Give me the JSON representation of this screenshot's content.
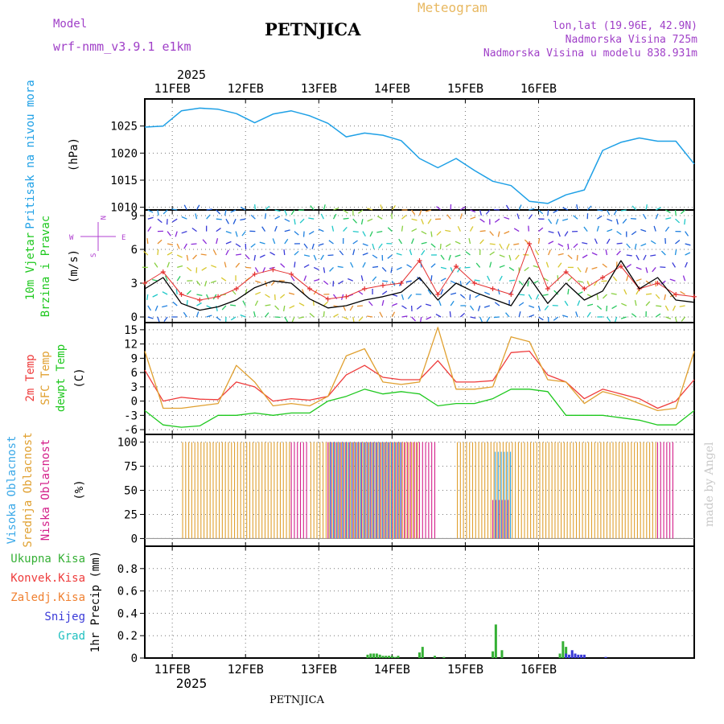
{
  "header": {
    "model_label": "Model",
    "model_name": "wrf-nmm_v3.9.1  e1km",
    "station": "PETNJICA",
    "product": "Meteogram",
    "coords": "lon,lat (19.96E, 42.9N)",
    "elevation": "Nadmorska Visina 725m",
    "model_elevation": "Nadmorska Visina u modelu 838.931m",
    "footer_station": "PETNJICA",
    "credit": "made by Angel"
  },
  "colors": {
    "pressure": "#1ea0e6",
    "wind_speed": "#000000",
    "gust": "#e43030",
    "t2m": "#ee3b3b",
    "sfc": "#e0a030",
    "dewpt": "#1ec81e",
    "high_cloud": "#3aa8e8",
    "mid_cloud": "#e0a030",
    "low_cloud": "#d4208a",
    "total_precip": "#35b035",
    "conv_precip": "#ee3b3b",
    "frozen_precip": "#f08030",
    "snow": "#3a3ad8",
    "hail": "#20c0c0",
    "compass": "#b040d0"
  },
  "x_axis": {
    "year": "2025",
    "days": [
      "11FEB",
      "12FEB",
      "13FEB",
      "14FEB",
      "15FEB",
      "16FEB"
    ]
  },
  "chart_data": [
    {
      "type": "line",
      "panel": "pressure",
      "title_lines": [
        "Pritisak na nivou mora"
      ],
      "unit": "(hPa)",
      "ylim": [
        1009.5,
        1030
      ],
      "yticks": [
        1010,
        1015,
        1020,
        1025
      ],
      "x_hours": [
        0,
        6,
        12,
        18,
        24,
        30,
        36,
        42,
        48,
        54,
        60,
        66,
        72,
        78,
        84,
        90,
        96,
        102,
        108,
        114,
        120,
        126,
        132,
        138,
        144,
        150,
        156,
        162,
        168,
        174,
        180
      ],
      "series": [
        {
          "values": [
            1024.8,
            1025.0,
            1027.8,
            1028.3,
            1028.1,
            1027.3,
            1025.6,
            1027.2,
            1027.8,
            1026.9,
            1025.5,
            1023.0,
            1023.7,
            1023.3,
            1022.3,
            1019.0,
            1017.3,
            1019.0,
            1016.8,
            1014.8,
            1014.0,
            1011.1,
            1010.7,
            1012.3,
            1013.2,
            1020.5,
            1022.0,
            1022.8,
            1022.2,
            1022.2,
            1018.0
          ]
        }
      ]
    },
    {
      "type": "line",
      "panel": "wind",
      "title_lines": [
        "10m Vjetar",
        "Brzina i Pravac"
      ],
      "unit": "(m/s)",
      "ylim": [
        -0.5,
        9.5
      ],
      "yticks": [
        0,
        3,
        6,
        9
      ],
      "compass": {
        "n": "N",
        "s": "S",
        "w": "W",
        "e": "E"
      },
      "x_hours": [
        0,
        6,
        12,
        18,
        24,
        30,
        36,
        42,
        48,
        54,
        60,
        66,
        72,
        78,
        84,
        90,
        96,
        102,
        108,
        114,
        120,
        126,
        132,
        138,
        144,
        150,
        156,
        162,
        168,
        174,
        180
      ],
      "series": [
        {
          "name": "wind speed",
          "values": [
            2.5,
            3.5,
            1.2,
            0.6,
            0.9,
            1.5,
            2.6,
            3.2,
            3.0,
            1.6,
            0.8,
            1.0,
            1.5,
            1.8,
            2.2,
            3.5,
            1.5,
            3.0,
            2.2,
            1.6,
            1.0,
            3.5,
            1.2,
            3.0,
            1.5,
            2.3,
            5.0,
            2.5,
            3.5,
            1.5,
            1.3
          ]
        },
        {
          "name": "gust",
          "values": [
            3.0,
            4.0,
            2.0,
            1.5,
            1.8,
            2.5,
            3.8,
            4.2,
            3.8,
            2.5,
            1.6,
            1.8,
            2.5,
            2.8,
            3.0,
            5.0,
            2.0,
            4.5,
            3.0,
            2.5,
            2.0,
            6.5,
            2.5,
            4.0,
            2.5,
            3.5,
            4.5,
            2.5,
            3.0,
            2.0,
            1.8
          ]
        }
      ]
    },
    {
      "type": "line",
      "panel": "temperature",
      "title_lines": [
        "2m Temp",
        "SFC Temp",
        "dewpt Temp"
      ],
      "unit": "(C)",
      "ylim": [
        -7,
        16.5
      ],
      "yticks": [
        -6,
        -3,
        0,
        3,
        6,
        9,
        12,
        15
      ],
      "x_hours": [
        0,
        6,
        12,
        18,
        24,
        30,
        36,
        42,
        48,
        54,
        60,
        66,
        72,
        78,
        84,
        90,
        96,
        102,
        108,
        114,
        120,
        126,
        132,
        138,
        144,
        150,
        156,
        162,
        168,
        174,
        180
      ],
      "series": [
        {
          "name": "2m Temp",
          "values": [
            6.5,
            0.0,
            0.8,
            0.4,
            0.3,
            4.0,
            3.0,
            0.0,
            0.5,
            0.2,
            1.0,
            5.5,
            7.5,
            5.0,
            4.5,
            4.5,
            8.5,
            4.0,
            4.0,
            4.3,
            10.2,
            10.5,
            5.5,
            4.0,
            0.5,
            2.5,
            1.5,
            0.5,
            -1.5,
            0.0,
            4.5
          ]
        },
        {
          "name": "SFC Temp",
          "values": [
            10.5,
            -1.5,
            -1.5,
            -1.0,
            -0.5,
            7.5,
            4.0,
            -1.0,
            -0.5,
            -1.0,
            1.0,
            9.5,
            11.0,
            4.0,
            3.5,
            4.0,
            15.5,
            2.5,
            2.5,
            3.0,
            13.5,
            12.5,
            4.5,
            4.0,
            -0.5,
            2.0,
            1.0,
            -0.5,
            -2.0,
            -1.5,
            10.5
          ]
        },
        {
          "name": "dewpt Temp",
          "values": [
            -2.0,
            -5.0,
            -5.5,
            -5.2,
            -3.0,
            -3.0,
            -2.5,
            -3.0,
            -2.5,
            -2.5,
            0.0,
            1.0,
            2.5,
            1.5,
            2.0,
            1.5,
            -1.0,
            -0.5,
            -0.5,
            0.5,
            2.5,
            2.5,
            2.0,
            -3.0,
            -3.0,
            -3.0,
            -3.5,
            -4.0,
            -5.0,
            -5.0,
            -2.0
          ]
        }
      ]
    },
    {
      "type": "bar",
      "panel": "cloud",
      "title_lines": [
        "Visoka Oblacnost",
        "Srednja Oblacnost",
        "Niska Oblacnost"
      ],
      "unit": "(%)",
      "ylim": [
        -8,
        108
      ],
      "yticks": [
        0,
        25,
        50,
        75,
        100
      ],
      "x_hours": [
        0,
        6,
        12,
        18,
        24,
        30,
        36,
        42,
        48,
        54,
        60,
        66,
        72,
        78,
        84,
        90,
        96,
        102,
        108,
        114,
        120,
        126,
        132,
        138,
        144,
        150,
        156,
        162,
        168,
        174,
        180
      ],
      "series": [
        {
          "name": "Niska Oblacnost",
          "values": [
            0,
            0,
            0,
            0,
            0,
            0,
            0,
            0,
            100,
            0,
            100,
            100,
            100,
            100,
            100,
            100,
            0,
            0,
            0,
            40,
            0,
            0,
            0,
            0,
            0,
            0,
            0,
            0,
            100,
            0,
            0
          ]
        },
        {
          "name": "Srednja Oblacnost",
          "values": [
            0,
            0,
            100,
            100,
            100,
            100,
            100,
            100,
            0,
            100,
            100,
            100,
            100,
            100,
            100,
            0,
            0,
            100,
            100,
            100,
            100,
            100,
            100,
            100,
            100,
            100,
            100,
            100,
            0,
            0,
            0
          ]
        },
        {
          "name": "Visoka Oblacnost",
          "values": [
            0,
            0,
            0,
            0,
            0,
            0,
            0,
            0,
            0,
            0,
            100,
            100,
            100,
            100,
            0,
            0,
            0,
            0,
            0,
            90,
            0,
            0,
            0,
            0,
            0,
            0,
            0,
            0,
            0,
            0,
            0
          ]
        }
      ]
    },
    {
      "type": "bar",
      "panel": "precip",
      "title_lines": [
        "1hr Precip (mm)"
      ],
      "legend": [
        "Ukupna Kisa",
        "Konvek.Kisa",
        "Zaledj.Kisa",
        "Snijeg",
        "Grad"
      ],
      "ylim": [
        0,
        1.0
      ],
      "yticks": [
        0,
        0.2,
        0.4,
        0.6,
        0.8
      ],
      "series": [
        {
          "name": "Ukupna Kisa",
          "x_hours": [
            73,
            74,
            75,
            76,
            77,
            78,
            79,
            80,
            81,
            82,
            83,
            90,
            91,
            95,
            98,
            114,
            115,
            117,
            136,
            137,
            138
          ],
          "values": [
            0.03,
            0.04,
            0.04,
            0.04,
            0.03,
            0.02,
            0.02,
            0.02,
            0.02,
            0.01,
            0.02,
            0.05,
            0.1,
            0.02,
            0.01,
            0.06,
            0.3,
            0.07,
            0.04,
            0.15,
            0.1
          ]
        },
        {
          "name": "Snijeg",
          "x_hours": [
            138,
            139,
            140,
            141,
            142,
            143,
            144,
            151
          ],
          "values": [
            0.04,
            0.03,
            0.07,
            0.04,
            0.03,
            0.03,
            0.03,
            0.01
          ]
        }
      ]
    }
  ]
}
